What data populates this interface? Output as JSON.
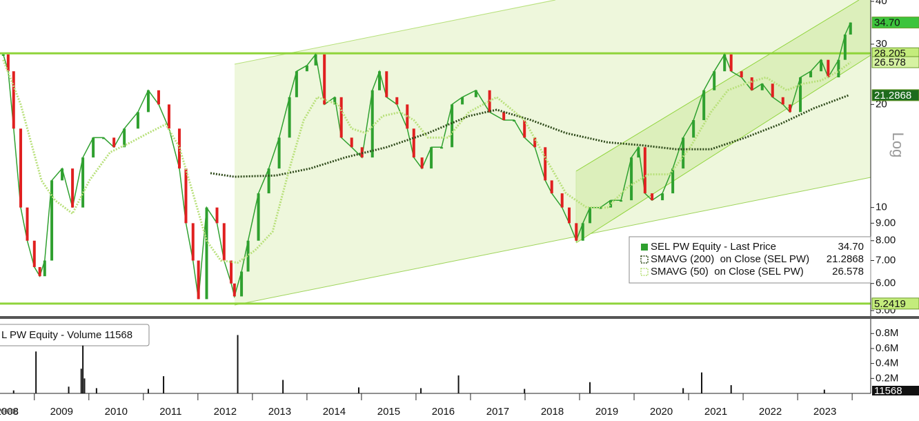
{
  "chart_data": {
    "type": "line",
    "scale": "log",
    "xlim": [
      2008.37,
      2024.34
    ],
    "ylim": [
      5,
      40
    ],
    "yticks": [
      {
        "value": 5,
        "label": "5.00"
      },
      {
        "value": 6,
        "label": "6.00"
      },
      {
        "value": 7,
        "label": "7.00"
      },
      {
        "value": 8,
        "label": "8.00"
      },
      {
        "value": 9,
        "label": "9.00"
      },
      10,
      20,
      30,
      40
    ],
    "xticks": [
      {
        "value": 2008.5,
        "label": "2008"
      },
      {
        "value": 2009.5,
        "label": "2009"
      },
      {
        "value": 2010.5,
        "label": "2010"
      },
      {
        "value": 2011.5,
        "label": "2011"
      },
      {
        "value": 2012.5,
        "label": "2012"
      },
      {
        "value": 2013.5,
        "label": "2013"
      },
      {
        "value": 2014.5,
        "label": "2014"
      },
      {
        "value": 2015.5,
        "label": "2015"
      },
      {
        "value": 2016.5,
        "label": "2016"
      },
      {
        "value": 2017.5,
        "label": "2017"
      },
      {
        "value": 2018.5,
        "label": "2018"
      },
      {
        "value": 2019.5,
        "label": "2019"
      },
      {
        "value": 2020.5,
        "label": "2020"
      },
      {
        "value": 2021.5,
        "label": "2021"
      },
      {
        "value": 2022.5,
        "label": "2022"
      },
      {
        "value": 2023.5,
        "label": "2023"
      }
    ],
    "axis_label": "Log",
    "date_note": "06/08",
    "series": [
      {
        "name": "SEL PW Equity - Last Price",
        "last_label": "34.70",
        "style": "price",
        "color": "#2fa02f",
        "down_color": "#e02020",
        "x": [
          2008.43,
          2008.52,
          2008.62,
          2008.75,
          2008.87,
          2009.0,
          2009.1,
          2009.19,
          2009.32,
          2009.51,
          2009.7,
          2009.89,
          2010.08,
          2010.27,
          2010.46,
          2010.65,
          2010.9,
          2011.09,
          2011.28,
          2011.47,
          2011.66,
          2011.78,
          2011.91,
          2012.01,
          2012.16,
          2012.35,
          2012.48,
          2012.61,
          2012.67,
          2012.8,
          2012.92,
          2013.11,
          2013.3,
          2013.49,
          2013.68,
          2013.81,
          2014.0,
          2014.16,
          2014.32,
          2014.51,
          2014.63,
          2014.82,
          2015.01,
          2015.2,
          2015.33,
          2015.46,
          2015.65,
          2015.84,
          2015.96,
          2016.11,
          2016.28,
          2016.47,
          2016.66,
          2016.85,
          2017.1,
          2017.35,
          2017.61,
          2017.8,
          2017.99,
          2018.18,
          2018.37,
          2018.49,
          2018.68,
          2018.81,
          2018.94,
          2019.06,
          2019.19,
          2019.38,
          2019.57,
          2019.76,
          2019.95,
          2020.08,
          2020.2,
          2020.33,
          2020.52,
          2020.71,
          2020.9,
          2021.09,
          2021.28,
          2021.47,
          2021.66,
          2021.78,
          2021.97,
          2022.16,
          2022.35,
          2022.54,
          2022.73,
          2022.86,
          2023.05,
          2023.24,
          2023.43,
          2023.56,
          2023.75,
          2023.87,
          2023.97
        ],
        "values": [
          28,
          25,
          17,
          10,
          8,
          6.7,
          6.3,
          7,
          12,
          13,
          10,
          14,
          16,
          16,
          15,
          17,
          19,
          22,
          20,
          17,
          13,
          9,
          7,
          5.4,
          10,
          9,
          7,
          6,
          5.5,
          6.5,
          8,
          11,
          13,
          16,
          21,
          25,
          26,
          28,
          20,
          21,
          16,
          15,
          14,
          22,
          25,
          21,
          20,
          17,
          14,
          13,
          15,
          15,
          20,
          21,
          22,
          19,
          18,
          18,
          16,
          15,
          12,
          11,
          10,
          9,
          8,
          9,
          10,
          10,
          10.5,
          10.5,
          14,
          15,
          11,
          10.5,
          11,
          13,
          16,
          18,
          22,
          25,
          28,
          25,
          24,
          22,
          23,
          21,
          20,
          19,
          24,
          25,
          27,
          24,
          27,
          32,
          34.7
        ]
      },
      {
        "name": "SMAVG (200)  on Close (SEL PW)",
        "last_label": "21.2868",
        "style": "dotted",
        "color": "#2e4a1a",
        "x": [
          2012.23,
          2012.67,
          2013.43,
          2014.06,
          2014.7,
          2015.46,
          2016.22,
          2016.97,
          2017.48,
          2018.11,
          2018.75,
          2019.51,
          2020.14,
          2020.77,
          2021.41,
          2022.04,
          2022.67,
          2023.3,
          2023.94
        ],
        "values": [
          12.6,
          12.3,
          12.4,
          13,
          14,
          15,
          16.5,
          18.5,
          19.3,
          18,
          16.5,
          15.5,
          15.2,
          14.8,
          14.8,
          16,
          17.5,
          19.5,
          21.2868
        ]
      },
      {
        "name": "SMAVG (50)  on Close (SEL PW)",
        "last_label": "26.578",
        "style": "dotted",
        "color": "#b8e07a",
        "x": [
          2008.43,
          2008.75,
          2009.13,
          2009.38,
          2009.7,
          2010.01,
          2010.39,
          2010.77,
          2011.09,
          2011.41,
          2011.66,
          2011.91,
          2012.16,
          2012.42,
          2012.73,
          2013.05,
          2013.37,
          2013.68,
          2013.94,
          2014.19,
          2014.57,
          2014.82,
          2015.08,
          2015.39,
          2015.71,
          2015.96,
          2016.22,
          2016.59,
          2016.97,
          2017.48,
          2017.99,
          2018.37,
          2018.75,
          2019.13,
          2019.51,
          2019.89,
          2020.27,
          2020.65,
          2021.03,
          2021.41,
          2021.72,
          2022.04,
          2022.42,
          2022.8,
          2023.11,
          2023.43,
          2023.75,
          2023.97
        ],
        "values": [
          27,
          20,
          12,
          10.5,
          9.6,
          12,
          14.5,
          15.5,
          16.5,
          17.5,
          15,
          11,
          8,
          7,
          6.9,
          7.5,
          8.5,
          13,
          18,
          21,
          20,
          17,
          16.5,
          18.5,
          19,
          18,
          16,
          16,
          19,
          21,
          18,
          14,
          11,
          10,
          10,
          11.5,
          12.5,
          12.5,
          15,
          19,
          22,
          23,
          24,
          22,
          23,
          23.5,
          25,
          26.578
        ]
      }
    ],
    "price_labels": [
      {
        "value": 34.7,
        "label": "34.70",
        "color": "#3cc43c",
        "text_color": "#111"
      },
      {
        "value": 28.205,
        "label": "28.205",
        "color": "#c4ec7c",
        "text_color": "#111"
      },
      {
        "value": 26.578,
        "label": "26.578",
        "color": "#d6f2a2",
        "text_color": "#111"
      },
      {
        "value": 21.2868,
        "label": "21.2868",
        "color": "#1d6b1d",
        "text_color": "#fff"
      },
      {
        "value": 5.2419,
        "label": "5.2419",
        "color": "#c4ec7c",
        "text_color": "#111"
      }
    ],
    "hlines": [
      {
        "value": 28.205,
        "color": "#8fd43a"
      },
      {
        "value": 5.2419,
        "color": "#8fd43a"
      }
    ],
    "volume": {
      "legend": "L PW Equity - Volume 11568",
      "last_label": "11568",
      "color": "#111",
      "ylim": [
        0,
        950000
      ],
      "yticks": [
        {
          "value": 200000,
          "label": "0.2M"
        },
        {
          "value": 400000,
          "label": "0.4M"
        },
        {
          "value": 600000,
          "label": "0.6M"
        },
        {
          "value": 800000,
          "label": "0.8M"
        }
      ],
      "x": [
        2008.62,
        2009.03,
        2009.63,
        2009.86,
        2009.89,
        2009.92,
        2010.14,
        2011.09,
        2011.37,
        2012.73,
        2013.56,
        2014.95,
        2016.09,
        2016.78,
        2017.99,
        2019.19,
        2020.9,
        2021.24,
        2021.78,
        2023.49
      ],
      "values": [
        40000,
        560000,
        90000,
        330000,
        640000,
        200000,
        70000,
        60000,
        230000,
        780000,
        180000,
        80000,
        70000,
        240000,
        60000,
        150000,
        70000,
        280000,
        110000,
        50000
      ]
    }
  }
}
